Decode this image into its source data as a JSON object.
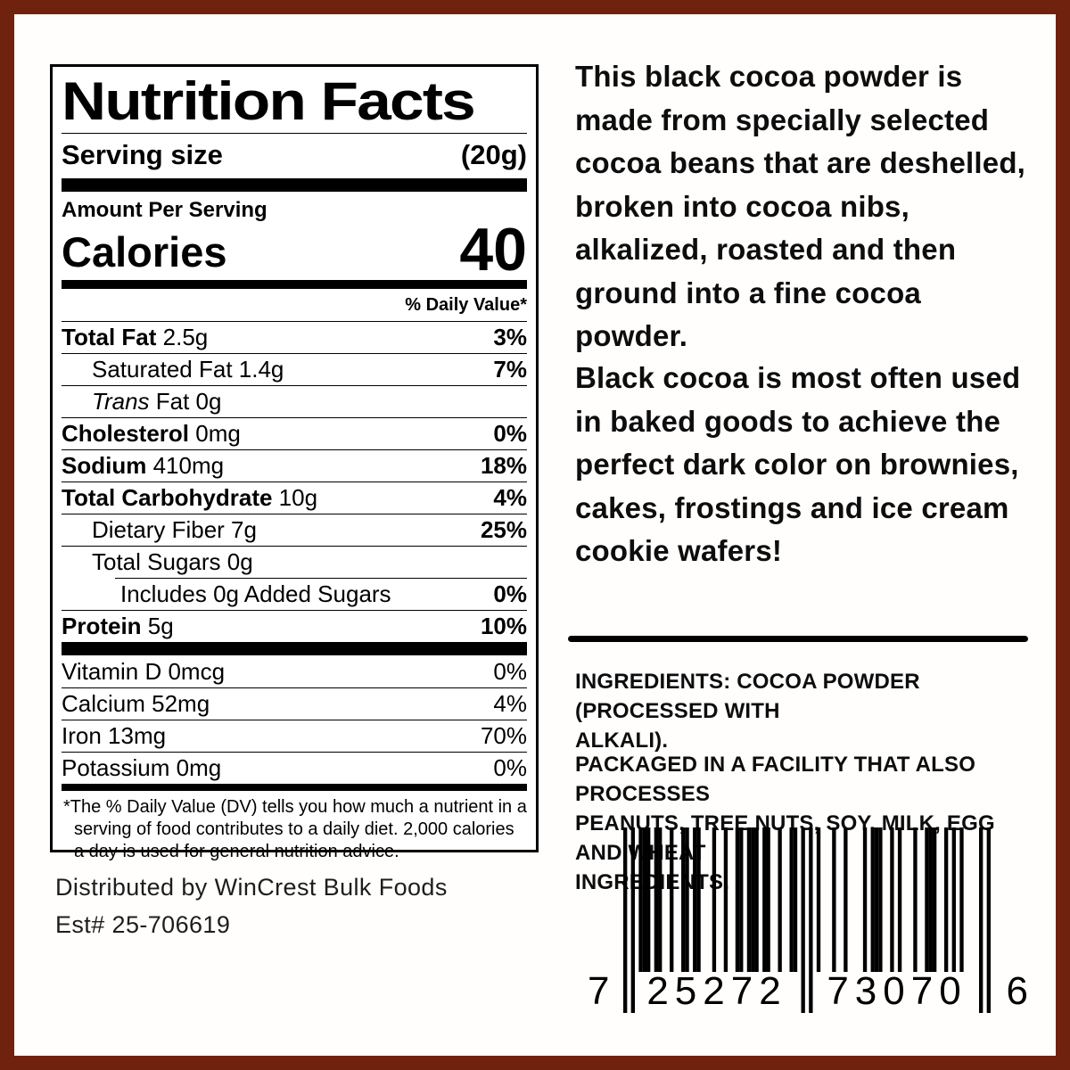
{
  "frame_color": "#71220F",
  "nutrition_label": {
    "title": "Nutrition Facts",
    "serving_label": "Serving size",
    "serving_value": "(20g)",
    "amount_per_serving": "Amount Per Serving",
    "calories_label": "Calories",
    "calories_value": "40",
    "daily_value_header": "% Daily Value*",
    "rows": [
      {
        "parts": [
          {
            "t": "Total Fat",
            "b": true
          },
          {
            "t": " 2.5g"
          }
        ],
        "pct": "3%",
        "pctBold": true,
        "indent": 0
      },
      {
        "parts": [
          {
            "t": "Saturated Fat 1.4g"
          }
        ],
        "pct": "7%",
        "pctBold": true,
        "indent": 1
      },
      {
        "parts": [
          {
            "t": "Trans",
            "i": true
          },
          {
            "t": " Fat 0g"
          }
        ],
        "pct": "",
        "indent": 1
      },
      {
        "parts": [
          {
            "t": "Cholesterol",
            "b": true
          },
          {
            "t": " 0mg"
          }
        ],
        "pct": "0%",
        "pctBold": true,
        "indent": 0
      },
      {
        "parts": [
          {
            "t": "Sodium",
            "b": true
          },
          {
            "t": " 410mg"
          }
        ],
        "pct": "18%",
        "pctBold": true,
        "indent": 0
      },
      {
        "parts": [
          {
            "t": "Total Carbohydrate",
            "b": true
          },
          {
            "t": " 10g"
          }
        ],
        "pct": "4%",
        "pctBold": true,
        "indent": 0
      },
      {
        "parts": [
          {
            "t": "Dietary Fiber 7g"
          }
        ],
        "pct": "25%",
        "pctBold": true,
        "indent": 1
      },
      {
        "parts": [
          {
            "t": "Total Sugars 0g"
          }
        ],
        "pct": "",
        "indent": 1
      },
      {
        "parts": [
          {
            "t": "Includes 0g Added Sugars"
          }
        ],
        "pct": "0%",
        "pctBold": true,
        "indent": 2,
        "dividerIndent": true
      },
      {
        "parts": [
          {
            "t": "Protein",
            "b": true
          },
          {
            "t": " 5g"
          }
        ],
        "pct": "10%",
        "pctBold": true,
        "indent": 0
      }
    ],
    "micronutrients": [
      {
        "parts": [
          {
            "t": "Vitamin D 0mcg"
          }
        ],
        "pct": "0%"
      },
      {
        "parts": [
          {
            "t": "Calcium 52mg"
          }
        ],
        "pct": "4%"
      },
      {
        "parts": [
          {
            "t": "Iron 13mg"
          }
        ],
        "pct": "70%"
      },
      {
        "parts": [
          {
            "t": "Potassium 0mg"
          }
        ],
        "pct": "0%"
      }
    ],
    "footnote": "*The % Daily Value (DV) tells you how much a nutrient in a serving of food contributes to a daily diet. 2,000 calories a day is used for general nutrition advice."
  },
  "distributor": {
    "line1": "Distributed by WinCrest Bulk Foods",
    "line2": "Est# 25-706619"
  },
  "description": {
    "paragraph1": "This black cocoa powder is\nmade from specially selected\ncocoa beans that are deshelled,\nbroken into cocoa nibs,\nalkalized, roasted and then\nground into a fine cocoa powder.",
    "paragraph2": "Black cocoa is most often used\nin baked goods to achieve the\nperfect dark color on brownies,\ncakes, frostings and ice cream\ncookie wafers!"
  },
  "ingredients": {
    "statement": "INGREDIENTS: COCOA POWDER (PROCESSED WITH\nALKALI).",
    "allergen": "PACKAGED IN A FACILITY THAT ALSO PROCESSES\nPEANUTS, TREE NUTS, SOY, MILK, EGG AND WHEAT\nINGREDIENTS."
  },
  "barcode": {
    "digits": "725272730706",
    "display_first": "7",
    "display_left_group": "25272",
    "display_right_group": "73070",
    "display_last": "6"
  }
}
